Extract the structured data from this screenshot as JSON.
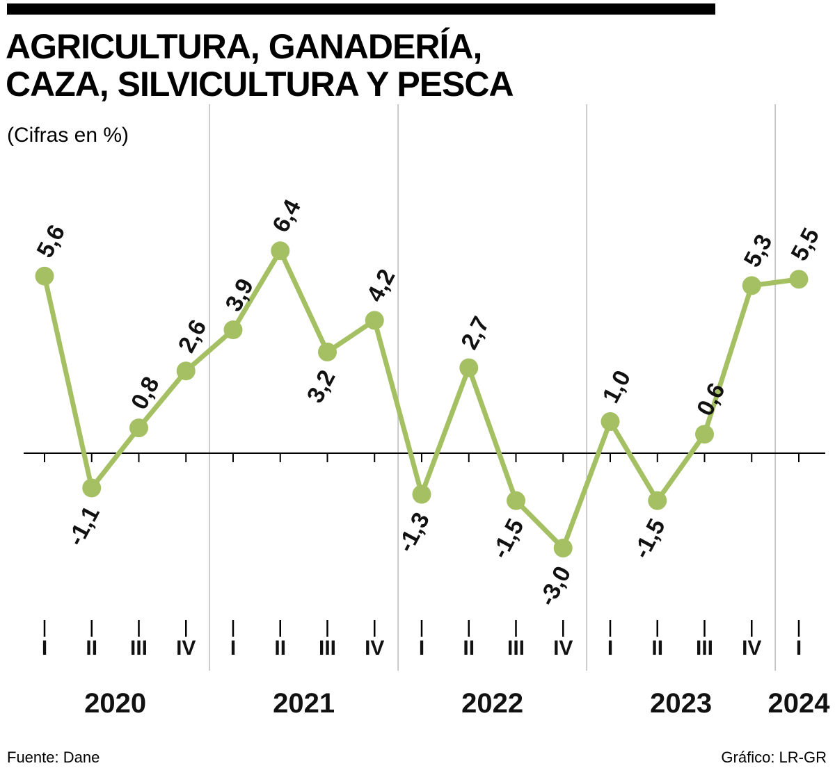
{
  "header": {
    "title_lines": [
      "AGRICULTURA, GANADERÍA,",
      "CAZA, SILVICULTURA Y PESCA"
    ],
    "subtitle": "(Cifras en %)",
    "top_bar_color": "#000000"
  },
  "footer": {
    "source": "Fuente: Dane",
    "credit": "Gráfico: LR-GR"
  },
  "chart_data": {
    "type": "line",
    "title": "AGRICULTURA, GANADERÍA, CAZA, SILVICULTURA Y PESCA",
    "subtitle": "(Cifras en %)",
    "unit": "%",
    "quarter_labels": [
      "I",
      "II",
      "III",
      "IV",
      "I",
      "II",
      "III",
      "IV",
      "I",
      "II",
      "III",
      "IV",
      "I",
      "II",
      "III",
      "IV",
      "I"
    ],
    "year_groups": [
      {
        "label": "2020",
        "quarters": 4
      },
      {
        "label": "2021",
        "quarters": 4
      },
      {
        "label": "2022",
        "quarters": 4
      },
      {
        "label": "2023",
        "quarters": 4
      },
      {
        "label": "2024",
        "quarters": 1
      }
    ],
    "values": [
      5.6,
      -1.1,
      0.8,
      2.6,
      3.9,
      6.4,
      3.2,
      4.2,
      -1.3,
      2.7,
      -1.5,
      -3.0,
      1.0,
      -1.5,
      0.6,
      5.3,
      5.5
    ],
    "value_labels": [
      "5,6",
      "-1,1",
      "0,8",
      "2,6",
      "3,9",
      "6,4",
      "3,2",
      "4,2",
      "-1,3",
      "2,7",
      "-1,5",
      "-3,0",
      "1,0",
      "-1,5",
      "0,6",
      "5,3",
      "5,5"
    ],
    "label_positions": [
      "above",
      "below",
      "above",
      "above",
      "above",
      "above",
      "below",
      "above",
      "below",
      "above",
      "below",
      "below",
      "above",
      "below",
      "above",
      "above",
      "above"
    ],
    "ylim": [
      -4,
      7
    ],
    "grid": "vertical-year-separators",
    "legend": "none",
    "line_color": "#a4c063",
    "marker_color": "#a4c063",
    "gridline_color": "#bbbbbb",
    "axis_color": "#000000",
    "label_color": "#111111"
  }
}
